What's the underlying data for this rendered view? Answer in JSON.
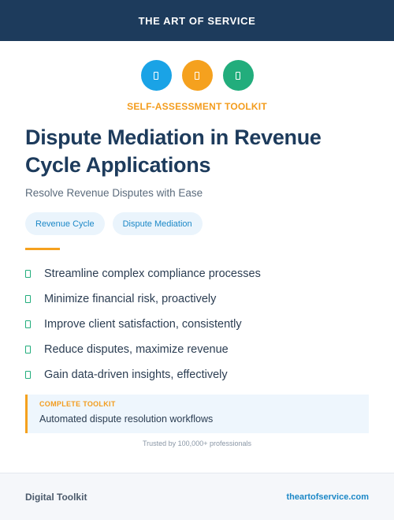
{
  "header": {
    "brand": "THE ART OF SERVICE"
  },
  "icons": [
    {
      "name": "document-icon",
      "color": "#1aa3e6"
    },
    {
      "name": "document-icon",
      "color": "#f5a11e"
    },
    {
      "name": "document-icon",
      "color": "#22ad7c"
    }
  ],
  "kicker": "SELF-ASSESSMENT TOOLKIT",
  "title": "Dispute Mediation in Revenue Cycle Applications",
  "subtitle": "Resolve Revenue Disputes with Ease",
  "tags": [
    "Revenue Cycle",
    "Dispute Mediation"
  ],
  "bullets": [
    "Streamline complex compliance processes",
    "Minimize financial risk, proactively",
    "Improve client satisfaction, consistently",
    "Reduce disputes, maximize revenue",
    "Gain data-driven insights, effectively"
  ],
  "callout": {
    "label": "COMPLETE TOOLKIT",
    "text": "Automated dispute resolution workflows"
  },
  "trusted": "Trusted by 100,000+ professionals",
  "footer": {
    "left": "Digital Toolkit",
    "right": "theartofservice.com"
  },
  "colors": {
    "navy": "#1d3b5c",
    "accent_orange": "#f5a11e",
    "accent_blue": "#1aa3e6",
    "accent_green": "#22ad7c"
  }
}
